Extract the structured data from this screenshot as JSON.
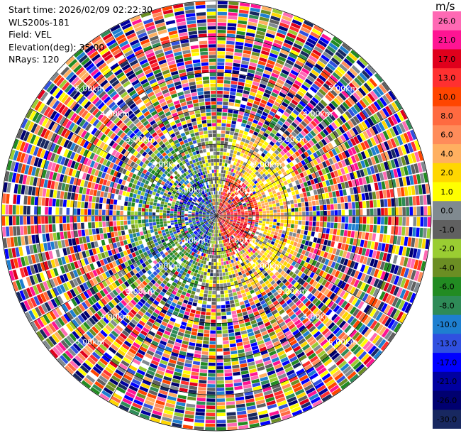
{
  "info": {
    "start_time": "Start time: 2026/02/09 02:22:30",
    "instrument": "WLS200s-181",
    "field": "Field: VEL",
    "elevation": "Elevation(deg): 35.00",
    "nrays": "NRays: 120"
  },
  "chart_data": {
    "type": "heatmap",
    "projection": "polar-ppi",
    "field": "VEL",
    "n_rays": 120,
    "n_gates": 60,
    "max_range_km": 6.0,
    "range_rings_km": [
      1,
      2,
      3,
      4,
      5
    ],
    "range_ring_labels": [
      "1.00km",
      "2.00km",
      "3.00km",
      "4.00km",
      "5.00km"
    ],
    "spoke_angles_deg": [
      0,
      30,
      60,
      90,
      120,
      150,
      180,
      210,
      240,
      270,
      300,
      330
    ],
    "colorbar": {
      "unit": "m/s",
      "ticks": [
        "26.0",
        "21.0",
        "17.0",
        "13.0",
        "10.0",
        "8.0",
        "6.0",
        "4.0",
        "2.0",
        "1.0",
        "0.0",
        "-1.0",
        "-2.0",
        "-4.0",
        "-6.0",
        "-8.0",
        "-10.0",
        "-13.0",
        "-17.0",
        "-21.0",
        "-26.0",
        "-30.0"
      ],
      "colors": [
        "#ff69b4",
        "#ff1493",
        "#e0001c",
        "#ff3030",
        "#ff4500",
        "#ff6a40",
        "#ff8c5a",
        "#ffb060",
        "#ffd700",
        "#ffff00",
        "#808a90",
        "#606060",
        "#9acd32",
        "#6b8e23",
        "#228b22",
        "#2e8b57",
        "#1e7fd0",
        "#3050e0",
        "#0000ff",
        "#0000a0",
        "#000070",
        "#182860"
      ]
    }
  }
}
